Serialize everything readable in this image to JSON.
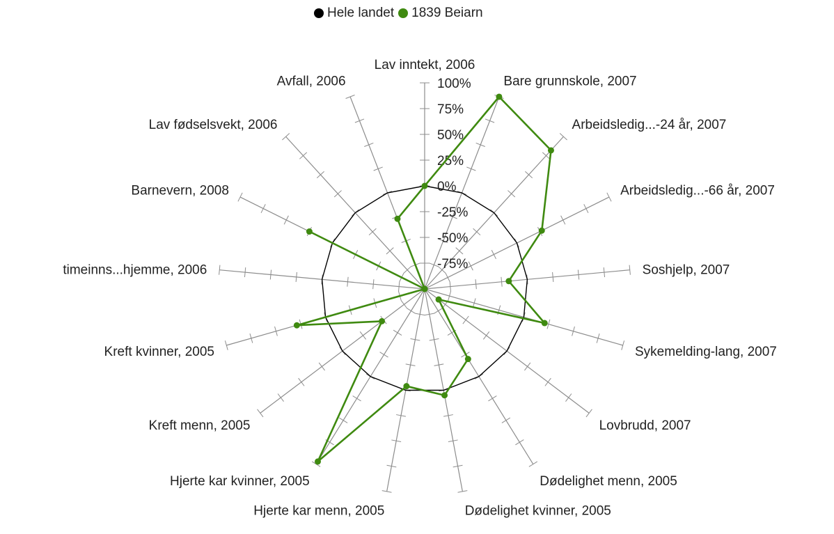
{
  "legend": {
    "items": [
      {
        "label": "Hele landet",
        "color": "#000000"
      },
      {
        "label": "1839 Beiarn",
        "color": "#3f8a10"
      }
    ]
  },
  "chart_data": {
    "type": "radar",
    "title": "",
    "axis": {
      "min": -100,
      "max": 100,
      "ticks": [
        100,
        75,
        50,
        25,
        0,
        -25,
        -50,
        -75
      ],
      "tick_suffix": "%",
      "minor_ticks_per_axis": 8
    },
    "categories": [
      "Lav inntekt, 2006",
      "Bare grunnskole, 2007",
      "Arbeidsledig...-24 år, 2007",
      "Arbeidsledig...-66 år, 2007",
      "Soshjelp, 2007",
      "Sykemelding-lang, 2007",
      "Lovbrudd, 2007",
      "Dødelighet menn, 2005",
      "Dødelighet kvinner, 2005",
      "Hjerte kar menn, 2005",
      "Hjerte kar kvinner, 2005",
      "Kreft menn, 2005",
      "Kreft kvinner, 2005",
      "timeinns...hjemme, 2006",
      "Barnevern, 2008",
      "Lav fødselsvekt, 2006",
      "Avfall, 2006"
    ],
    "series": [
      {
        "name": "Hele landet",
        "color": "#000000",
        "values": [
          0,
          0,
          0,
          0,
          0,
          0,
          0,
          0,
          0,
          0,
          0,
          0,
          0,
          0,
          0,
          0,
          0
        ]
      },
      {
        "name": "1839 Beiarn",
        "color": "#3f8a10",
        "values": [
          0,
          100,
          82,
          27,
          -18,
          21,
          -83,
          -20,
          5,
          -4,
          97,
          -48,
          29,
          -100,
          25,
          -100,
          -27
        ]
      }
    ],
    "grid": true,
    "legend_position": "top"
  }
}
